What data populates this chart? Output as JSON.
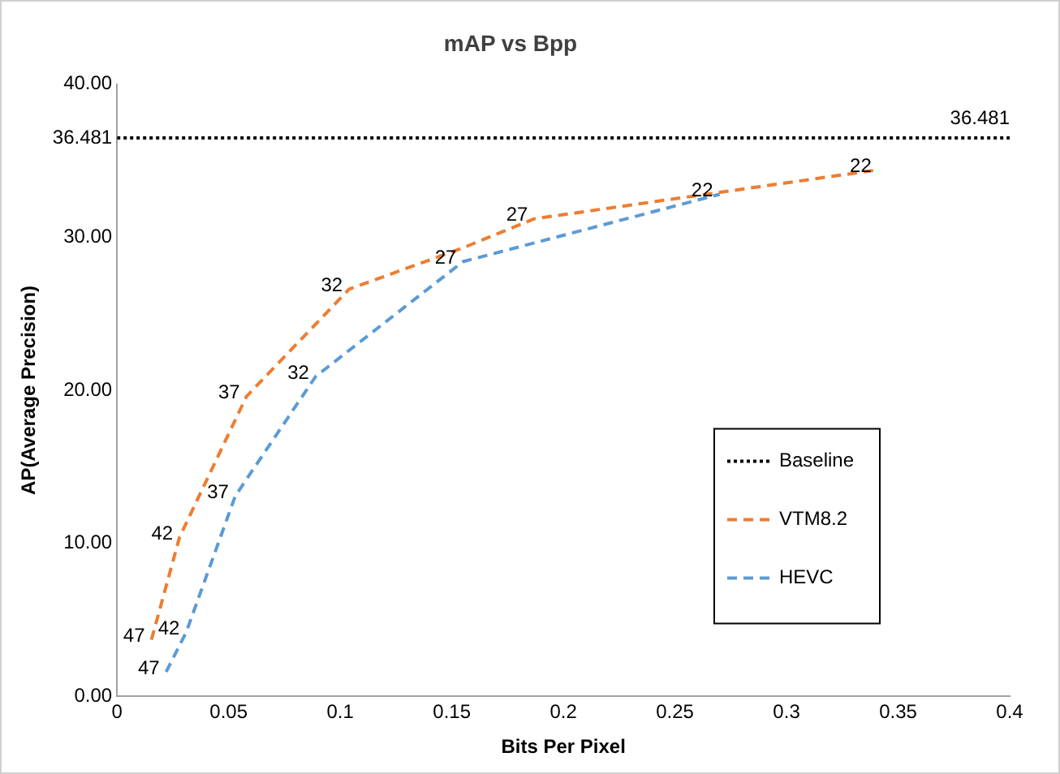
{
  "chart_data": {
    "type": "line",
    "title": "mAP vs Bpp",
    "xlabel": "Bits Per Pixel",
    "ylabel": "AP(Average Precision)",
    "series": [
      {
        "name": "Baseline",
        "color": "#000000",
        "line_style": "dotted",
        "x": [
          0,
          0.4
        ],
        "values": [
          36.481,
          36.481
        ]
      },
      {
        "name": "VTM8.2",
        "color": "#ed7d31",
        "line_style": "dashed",
        "x": [
          0.0154,
          0.028,
          0.058,
          0.104,
          0.155,
          0.187,
          0.264,
          0.341
        ],
        "values": [
          3.7,
          10.4,
          19.6,
          26.6,
          29.3,
          31.2,
          32.8,
          34.4
        ]
      },
      {
        "name": "HEVC",
        "color": "#5b9bd5",
        "line_style": "dashed",
        "x": [
          0.022,
          0.031,
          0.053,
          0.089,
          0.155,
          0.27
        ],
        "values": [
          1.6,
          4.2,
          13.1,
          20.9,
          28.4,
          32.8
        ]
      }
    ],
    "annotations": [
      {
        "text": "36.481",
        "x": 0.4,
        "y": 36.481
      },
      {
        "text": "47",
        "x": 0.0154,
        "y": 3.7
      },
      {
        "text": "42",
        "x": 0.028,
        "y": 10.4
      },
      {
        "text": "37",
        "x": 0.058,
        "y": 19.6
      },
      {
        "text": "32",
        "x": 0.104,
        "y": 26.6
      },
      {
        "text": "27",
        "x": 0.187,
        "y": 31.2
      },
      {
        "text": "22",
        "x": 0.341,
        "y": 34.4
      },
      {
        "text": "47",
        "x": 0.022,
        "y": 1.6
      },
      {
        "text": "42",
        "x": 0.031,
        "y": 4.2
      },
      {
        "text": "37",
        "x": 0.053,
        "y": 13.1
      },
      {
        "text": "32",
        "x": 0.089,
        "y": 20.9
      },
      {
        "text": "27",
        "x": 0.155,
        "y": 28.4
      },
      {
        "text": "22",
        "x": 0.27,
        "y": 32.8
      }
    ],
    "xlim": [
      0,
      0.4
    ],
    "xticks": [
      0,
      0.05,
      0.1,
      0.15,
      0.2,
      0.25,
      0.3,
      0.35,
      0.4
    ],
    "ylim": [
      0,
      40
    ],
    "yticks": [
      {
        "value": 0,
        "label": "0.00"
      },
      {
        "value": 10,
        "label": "10.00"
      },
      {
        "value": 20,
        "label": "20.00"
      },
      {
        "value": 30,
        "label": "30.00"
      },
      {
        "value": 36.481,
        "label": "36.481"
      },
      {
        "value": 40,
        "label": "40.00"
      }
    ],
    "grid": false,
    "legend": "bottom right",
    "marker": "none"
  }
}
